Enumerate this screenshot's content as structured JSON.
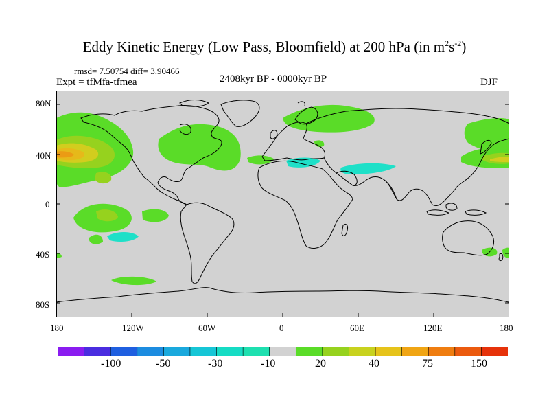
{
  "title": {
    "main": "Eddy Kinetic Energy (Low Pass, Bloomfield) at 200 hPa (in m",
    "sup1": "2",
    "mid": "s",
    "sup2": "-2",
    "end": ")"
  },
  "stats": "rmsd= 7.50754 diff= 3.90466",
  "expt": "Expt = tfMfa-tfmea",
  "period": "2408kyr BP - 0000kyr BP",
  "season": "DJF",
  "lat_labels": [
    "80N",
    "40N",
    "0",
    "40S",
    "80S"
  ],
  "lon_labels": [
    "180",
    "120W",
    "60W",
    "0",
    "60E",
    "120E",
    "180"
  ],
  "colorbar": {
    "labels": [
      "-100",
      "-50",
      "-30",
      "-10",
      "20",
      "40",
      "75",
      "150"
    ],
    "colors": [
      "#8a1cf0",
      "#4a2de0",
      "#1f5fe0",
      "#1c8ce0",
      "#1aa9dd",
      "#16c6d6",
      "#16dcc4",
      "#1ee0b0",
      "#d2d2d2",
      "#5adc28",
      "#96d21e",
      "#c8d21e",
      "#e6c31a",
      "#f0a514",
      "#ef7d10",
      "#eb5a0e",
      "#e6320a"
    ]
  },
  "colors": {
    "land_bg": "#d2d2d2",
    "green": "#5adc28",
    "lightgreen": "#96d21e",
    "yellow": "#d2cd1e",
    "gold": "#e6b91a",
    "orange": "#eb9b14",
    "cyan": "#1ee0c8"
  }
}
